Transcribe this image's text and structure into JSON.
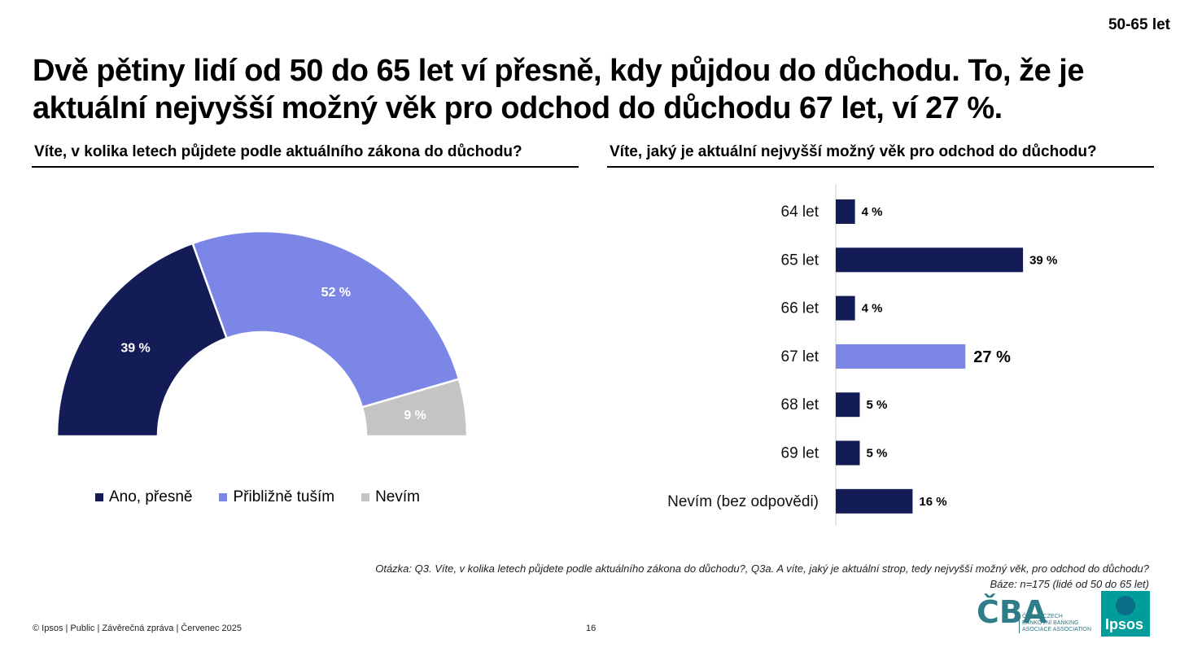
{
  "age_tag": "50-65 let",
  "headline": "Dvě pětiny lidí od 50 do 65 let ví přesně, kdy půjdou do důchodu. To, že je aktuální nejvyšší možný věk pro odchod do důchodu 67 let, ví 27 %.",
  "left_question": "Víte, v kolika letech půjdete podle aktuálního zákona do důchodu?",
  "right_question": "Víte, jaký je aktuální nejvyšší možný věk pro odchod do důchodu?",
  "chart_data": [
    {
      "type": "pie",
      "variant": "half-donut",
      "categories": [
        "Ano, přesně",
        "Přibližně tuším",
        "Nevím"
      ],
      "values": [
        39,
        52,
        9
      ],
      "labels": [
        "39 %",
        "52 %",
        "9 %"
      ],
      "colors": [
        "#141c58",
        "#7b86e6",
        "#c4c4c4"
      ],
      "label_colors": [
        "#ffffff",
        "#ffffff",
        "#ffffff"
      ],
      "legend_position": "bottom"
    },
    {
      "type": "bar",
      "orientation": "horizontal",
      "categories": [
        "64 let",
        "65 let",
        "66 let",
        "67 let",
        "68 let",
        "69 let",
        "Nevím (bez odpovědi)"
      ],
      "values": [
        4,
        39,
        4,
        27,
        5,
        5,
        16
      ],
      "labels": [
        "4 %",
        "39 %",
        "4 %",
        "27 %",
        "5 %",
        "5 %",
        "16 %"
      ],
      "highlight_index": 3,
      "colors": {
        "default": "#141c58",
        "highlight": "#7b86e6"
      }
    }
  ],
  "footnote": {
    "question": "Otázka: Q3. Víte, v kolika letech půjdete podle aktuálního zákona do důchodu?, Q3a. A víte, jaký je aktuální strop, tedy nejvyšší možný věk, pro odchod do důchodu?",
    "base": "Báze: n=175 (lidé od 50 do 65 let)"
  },
  "footer": {
    "left": "© Ipsos | Public | Závěrečná zpráva | Červenec 2025",
    "page": "16"
  },
  "logos": {
    "cba_mark": "ČBA",
    "cba_lines": [
      "ČESKÁ CZECH",
      "BANKOVNÍ BANKING",
      "ASOCIACE ASSOCIATION"
    ],
    "ipsos": "Ipsos"
  }
}
